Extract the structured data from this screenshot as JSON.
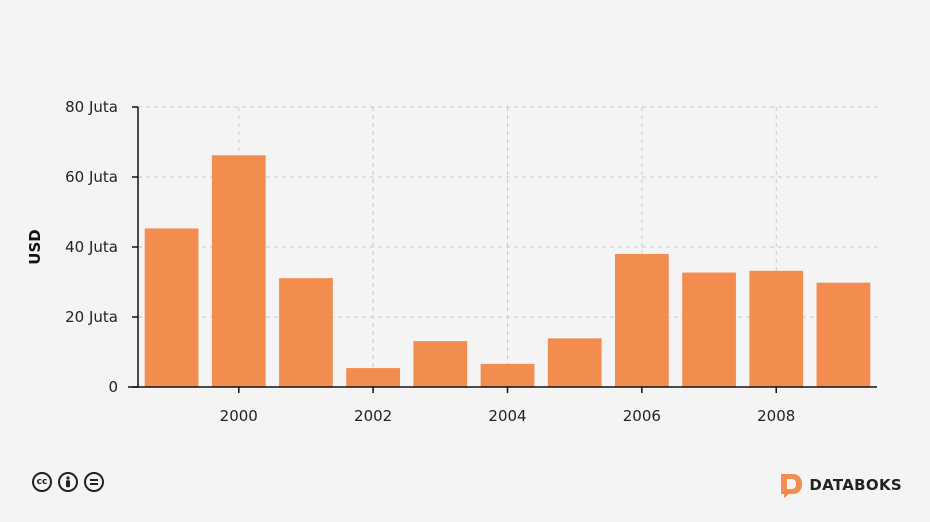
{
  "chart_data": {
    "type": "bar",
    "ylabel": "USD",
    "ylim": [
      0,
      80
    ],
    "yticks": [
      {
        "value": 0,
        "label": "0"
      },
      {
        "value": 20,
        "label": "20 Juta"
      },
      {
        "value": 40,
        "label": "40 Juta"
      },
      {
        "value": 60,
        "label": "60 Juta"
      },
      {
        "value": 80,
        "label": "80 Juta"
      }
    ],
    "xlim": [
      1998.5,
      2009.5
    ],
    "xticks": [
      {
        "value": 2000,
        "label": "2000"
      },
      {
        "value": 2002,
        "label": "2002"
      },
      {
        "value": 2004,
        "label": "2004"
      },
      {
        "value": 2006,
        "label": "2006"
      },
      {
        "value": 2008,
        "label": "2008"
      }
    ],
    "x": [
      1999,
      2000,
      2001,
      2002,
      2003,
      2004,
      2005,
      2006,
      2007,
      2008,
      2009
    ],
    "values": [
      45.3,
      66.2,
      31.1,
      5.4,
      13.1,
      6.6,
      13.9,
      38.0,
      32.7,
      33.2,
      29.8
    ],
    "bar_color": "#f28c4f",
    "grid": true
  },
  "footer": {
    "license_icons": [
      "cc-icon",
      "by-icon",
      "nd-icon"
    ],
    "brand": "DATABOKS",
    "brand_color": "#f28c4f"
  }
}
